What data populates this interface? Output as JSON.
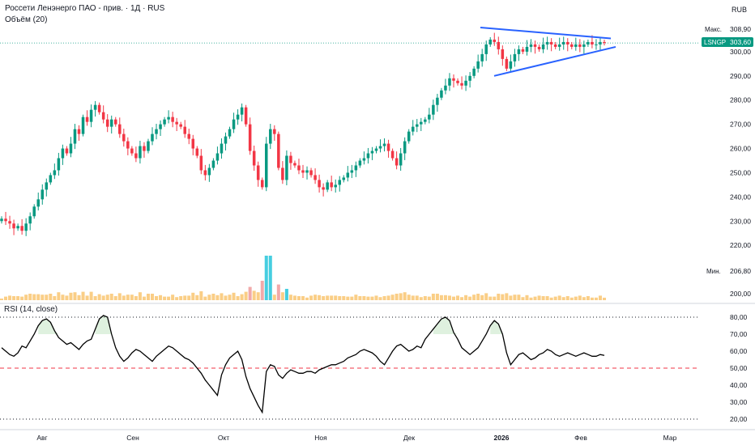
{
  "header": {
    "title": "Россети Ленэнерго ПАО - прив. · 1Д · RUS",
    "volume_label": "Объём (20)",
    "currency": "RUB"
  },
  "rsi_panel": {
    "label": "RSI (14, close)"
  },
  "markers": {
    "max_label": "Макс.",
    "max_value": "308,90",
    "min_label": "Мин.",
    "min_value": "206,80",
    "ticker": "LSNGP",
    "last_value": "303,60",
    "ticker_color": "#089981"
  },
  "colors": {
    "up": "#089981",
    "down": "#f23645",
    "rsi": "#000000",
    "trend": "#2962ff",
    "volume": "#f5a623"
  },
  "chart_data": [
    {
      "type": "candlestick",
      "ylim": [
        197,
        312
      ],
      "y_ticks": [
        "200,00",
        "210,00",
        "220,00",
        "230,00",
        "240,00",
        "250,00",
        "260,00",
        "270,00",
        "280,00",
        "290,00",
        "300,00"
      ],
      "x_ticks": [
        "Авг",
        "Сен",
        "Окт",
        "Ноя",
        "Дек",
        "2026",
        "Фев",
        "Мар"
      ],
      "series": [
        {
          "close": [
            231,
            230,
            229,
            227,
            228,
            226,
            229,
            232,
            236,
            239,
            243,
            246,
            249,
            251,
            256,
            260,
            258,
            262,
            268,
            266,
            273,
            271,
            276,
            278,
            275,
            272,
            269,
            272,
            270,
            266,
            263,
            260,
            258,
            256,
            261,
            259,
            263,
            266,
            268,
            270,
            272,
            273,
            271,
            270,
            269,
            266,
            264,
            260,
            257,
            251,
            249,
            252,
            255,
            258,
            262,
            265,
            268,
            272,
            274,
            277,
            270,
            259,
            253,
            247,
            244,
            262,
            268,
            266,
            252,
            247,
            257,
            254,
            253,
            251,
            250,
            251,
            249,
            247,
            244,
            243,
            246,
            244,
            245,
            247,
            248,
            250,
            251,
            253,
            255,
            256,
            258,
            259,
            260,
            261,
            262,
            259,
            256,
            253,
            258,
            263,
            267,
            269,
            270,
            271,
            272,
            274,
            278,
            281,
            284,
            286,
            289,
            288,
            287,
            286,
            288,
            290,
            293,
            296,
            299,
            303,
            305,
            304,
            301,
            297,
            293,
            296,
            299,
            301,
            300,
            302,
            303,
            302,
            301,
            303,
            304,
            303,
            302,
            303,
            304,
            303,
            302,
            303,
            302,
            303,
            304,
            303,
            303,
            304,
            303.6
          ]
        }
      ]
    },
    {
      "type": "line",
      "name": "RSI (14, close)",
      "ylim": [
        20,
        80
      ],
      "y_ticks": [
        "20,00",
        "30,00",
        "40,00",
        "50,00",
        "60,00",
        "70,00",
        "80,00"
      ],
      "bands": [
        20,
        50,
        80
      ],
      "values": [
        62,
        60,
        58,
        57,
        59,
        63,
        62,
        66,
        70,
        75,
        78,
        79,
        77,
        72,
        68,
        66,
        64,
        65,
        63,
        61,
        64,
        66,
        67,
        73,
        79,
        81,
        80,
        70,
        62,
        57,
        54,
        56,
        59,
        61,
        60,
        58,
        56,
        54,
        57,
        59,
        61,
        63,
        62,
        60,
        58,
        56,
        55,
        53,
        50,
        47,
        43,
        40,
        37,
        34,
        46,
        52,
        56,
        58,
        60,
        55,
        45,
        38,
        33,
        28,
        24,
        48,
        52,
        51,
        46,
        44,
        47,
        49,
        48,
        47,
        47,
        48,
        48,
        47,
        49,
        50,
        51,
        52,
        52,
        53,
        54,
        56,
        57,
        58,
        60,
        61,
        60,
        59,
        57,
        54,
        52,
        56,
        60,
        63,
        64,
        62,
        60,
        61,
        63,
        62,
        67,
        70,
        73,
        76,
        79,
        80,
        78,
        71,
        67,
        62,
        60,
        58,
        60,
        62,
        66,
        70,
        75,
        78,
        76,
        70,
        59,
        52,
        55,
        58,
        59,
        57,
        55,
        56,
        58,
        59,
        61,
        60,
        58,
        57,
        58,
        59,
        58,
        57,
        58,
        59,
        58,
        57,
        57,
        58,
        57.5
      ]
    }
  ]
}
